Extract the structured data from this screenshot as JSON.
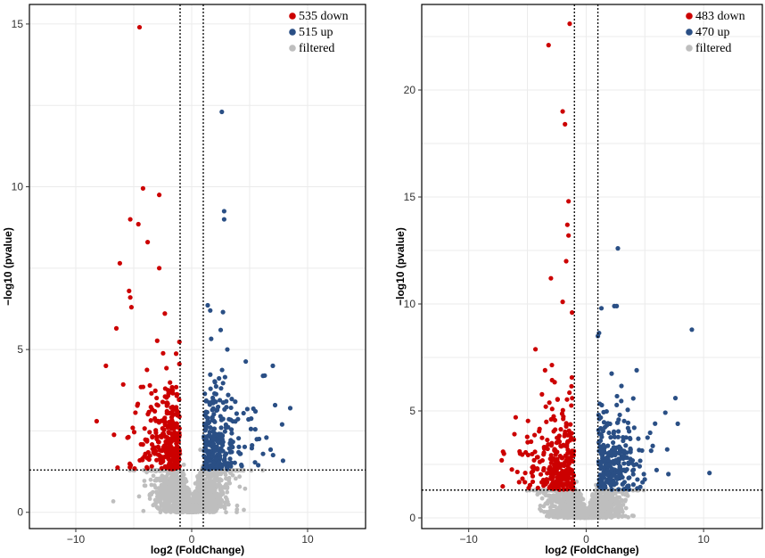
{
  "chart_data": [
    {
      "type": "scatter",
      "title": "",
      "xlabel": "log2 (FoldChange)",
      "ylabel": "−log10 (pvalue)",
      "xlim": [
        -14,
        15
      ],
      "ylim": [
        -0.5,
        15.6
      ],
      "xticks": [
        -10,
        0,
        10
      ],
      "yticks": [
        0,
        5,
        10,
        15
      ],
      "xtick_labels": [
        "−10",
        "0",
        "10"
      ],
      "ytick_labels": [
        "0",
        "5",
        "10",
        "15"
      ],
      "grid": true,
      "legend_position": "top-right",
      "thresholds": {
        "fold_change": [
          -1,
          1
        ],
        "pvalue": 1.3
      },
      "series": [
        {
          "name": "535 down",
          "color": "#cc0000",
          "count": 535,
          "highlights": [
            [
              -4.5,
              14.9
            ],
            [
              -4.2,
              9.95
            ],
            [
              -2.8,
              9.75
            ],
            [
              -5.3,
              9.0
            ],
            [
              -4.6,
              8.85
            ],
            [
              -3.8,
              8.3
            ],
            [
              -6.2,
              7.65
            ],
            [
              -2.8,
              7.5
            ],
            [
              -5.4,
              6.8
            ],
            [
              -5.3,
              6.6
            ],
            [
              -5.2,
              6.3
            ],
            [
              -6.5,
              5.65
            ],
            [
              -7.4,
              4.5
            ],
            [
              -8.2,
              2.8
            ]
          ]
        },
        {
          "name": "515 up",
          "color": "#2a4f85",
          "count": 515,
          "highlights": [
            [
              2.6,
              12.3
            ],
            [
              2.8,
              9.25
            ],
            [
              2.8,
              9.0
            ],
            [
              1.6,
              6.2
            ],
            [
              2.7,
              6.15
            ],
            [
              2.5,
              5.6
            ],
            [
              7.0,
              4.5
            ],
            [
              6.3,
              4.2
            ],
            [
              8.5,
              3.2
            ],
            [
              7.8,
              2.7
            ],
            [
              5.5,
              3.1
            ]
          ]
        },
        {
          "name": "filtered",
          "color": "#bebebe"
        }
      ]
    },
    {
      "type": "scatter",
      "title": "",
      "xlabel": "log2 (FoldChange)",
      "ylabel": "−log10 (pvalue)",
      "xlim": [
        -14,
        15
      ],
      "ylim": [
        -0.5,
        24
      ],
      "xticks": [
        -10,
        0,
        10
      ],
      "yticks": [
        0,
        5,
        10,
        15,
        20
      ],
      "xtick_labels": [
        "−10",
        "0",
        "10"
      ],
      "ytick_labels": [
        "0",
        "5",
        "10",
        "15",
        "20"
      ],
      "grid": true,
      "legend_position": "top-right",
      "thresholds": {
        "fold_change": [
          -1,
          1
        ],
        "pvalue": 1.3
      },
      "series": [
        {
          "name": "483 down",
          "color": "#cc0000",
          "count": 483,
          "highlights": [
            [
              -1.4,
              23.1
            ],
            [
              -3.2,
              22.1
            ],
            [
              -2.0,
              19.0
            ],
            [
              -1.8,
              18.4
            ],
            [
              -1.5,
              14.8
            ],
            [
              -1.6,
              13.7
            ],
            [
              -1.5,
              13.2
            ],
            [
              -1.7,
              12.0
            ],
            [
              -3.0,
              11.2
            ],
            [
              -2.0,
              10.1
            ],
            [
              -1.2,
              9.6
            ],
            [
              -3.5,
              6.9
            ],
            [
              -6.0,
              4.7
            ],
            [
              -7.0,
              3.0
            ]
          ]
        },
        {
          "name": "470 up",
          "color": "#2a4f85",
          "count": 470,
          "highlights": [
            [
              2.7,
              12.6
            ],
            [
              2.4,
              9.9
            ],
            [
              2.6,
              9.9
            ],
            [
              9.0,
              8.8
            ],
            [
              1.3,
              9.8
            ],
            [
              1.0,
              8.5
            ],
            [
              7.6,
              5.6
            ],
            [
              7.8,
              4.4
            ],
            [
              10.5,
              2.1
            ],
            [
              6.9,
              3.2
            ],
            [
              4.3,
              6.9
            ]
          ]
        },
        {
          "name": "filtered",
          "color": "#bebebe"
        }
      ]
    }
  ]
}
